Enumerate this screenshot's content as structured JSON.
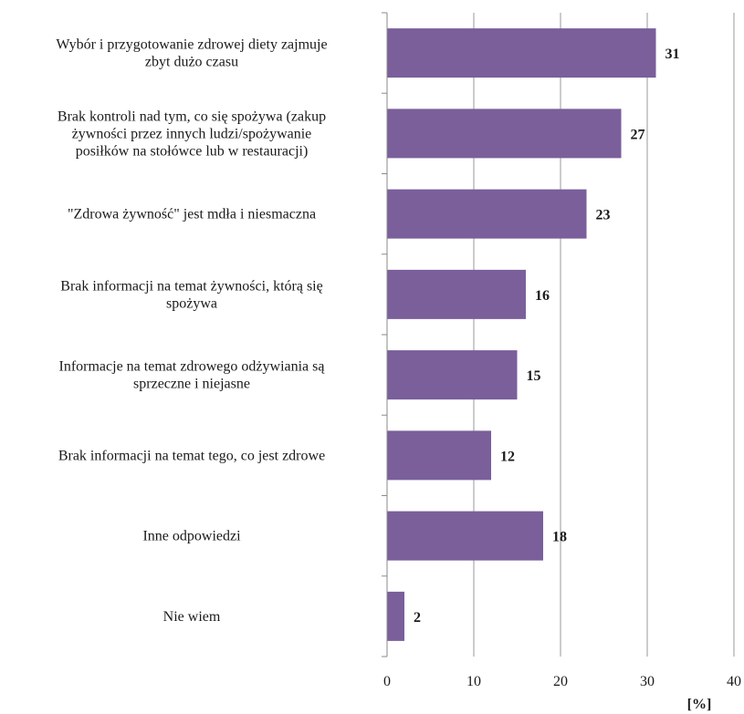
{
  "chart_data": {
    "type": "bar",
    "orientation": "horizontal",
    "categories": [
      [
        "Wybór i przygotowanie zdrowej diety zajmuje",
        "zbyt dużo czasu"
      ],
      [
        "Brak kontroli nad tym, co się spożywa (zakup",
        "żywności przez innych ludzi/spożywanie",
        "posiłków na stołówce lub w restauracji)"
      ],
      [
        "\"Zdrowa żywność\" jest mdła i niesmaczna"
      ],
      [
        "Brak informacji na temat żywności, którą się",
        "spożywa"
      ],
      [
        "Informacje na temat zdrowego odżywiania są",
        "sprzeczne i niejasne"
      ],
      [
        "Brak informacji na temat tego, co jest zdrowe"
      ],
      [
        "Inne odpowiedzi"
      ],
      [
        "Nie wiem"
      ]
    ],
    "values": [
      31,
      27,
      23,
      16,
      15,
      12,
      18,
      2
    ],
    "xlim": [
      0,
      40
    ],
    "xticks": [
      0,
      10,
      20,
      30,
      40
    ],
    "xunit": "[%]",
    "bar_color": "#7a5f9b",
    "grid": true,
    "legend": "none"
  }
}
